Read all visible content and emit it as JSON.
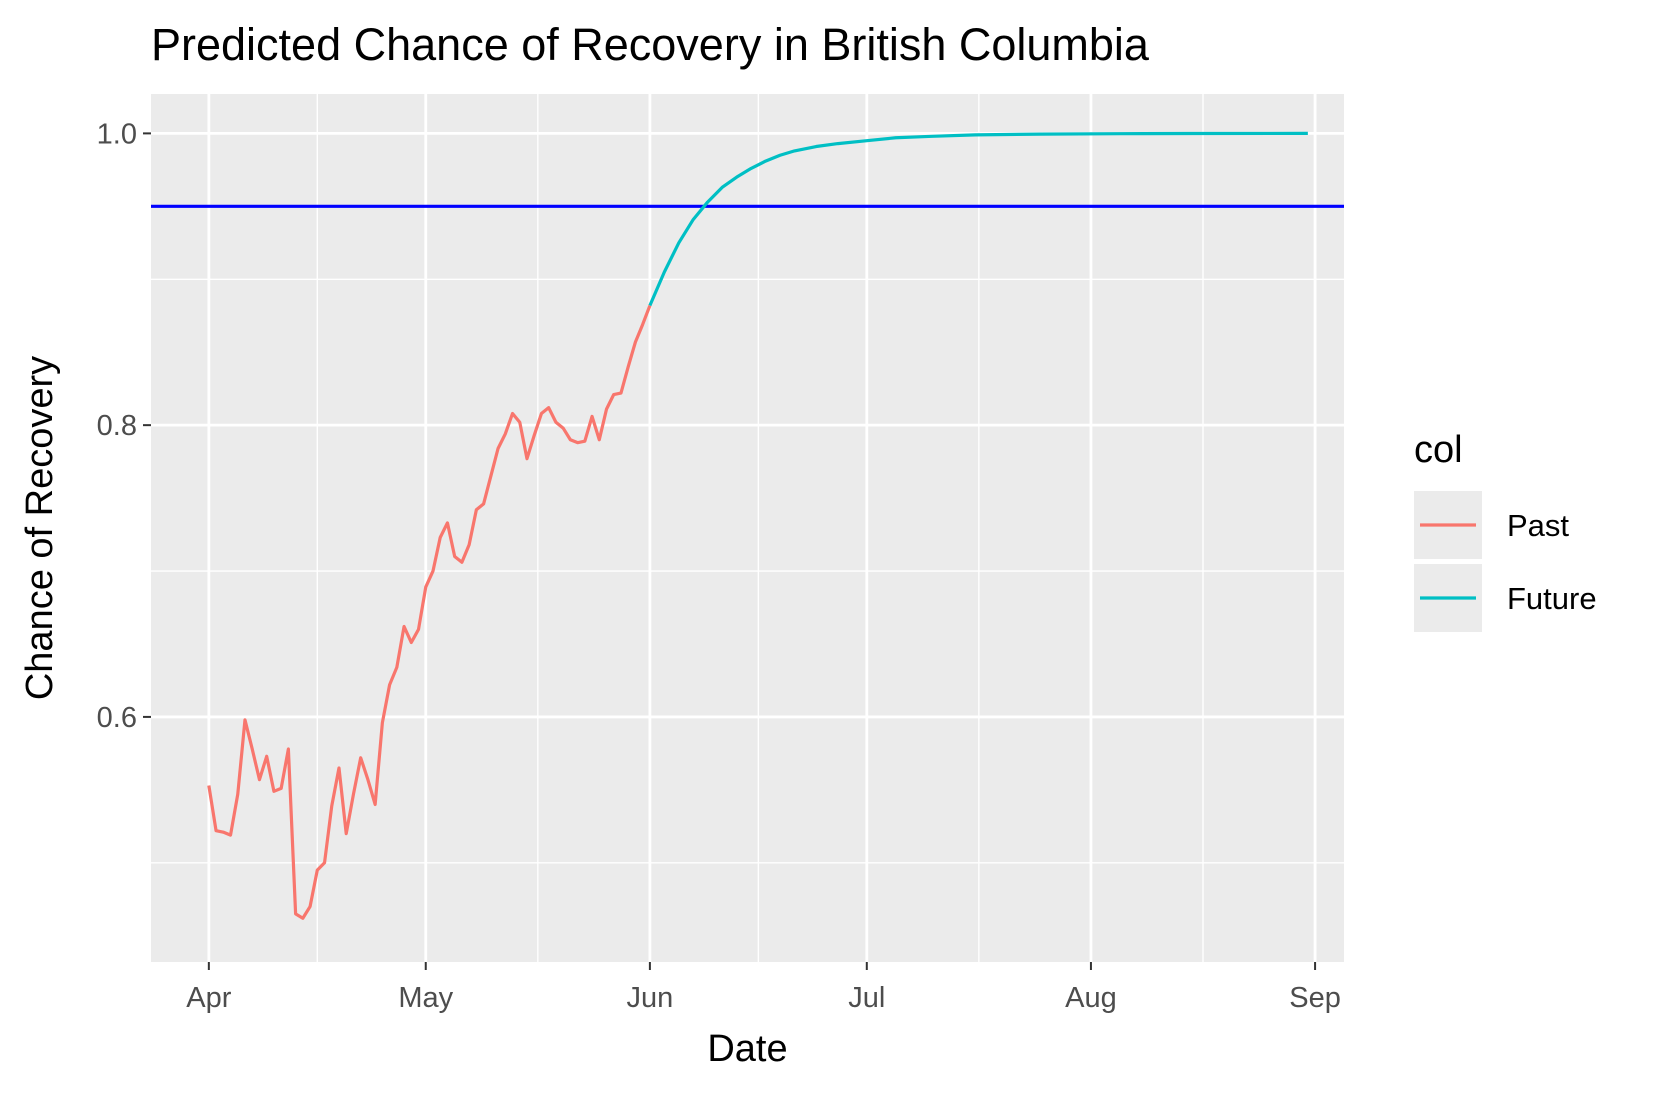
{
  "chart_data": {
    "type": "line",
    "title": "Predicted Chance of Recovery in British Columbia",
    "xlabel": "Date",
    "ylabel": "Chance of Recovery",
    "x_tick_labels": [
      "Apr",
      "May",
      "Jun",
      "Jul",
      "Aug",
      "Sep"
    ],
    "x_tick_dates": [
      "2020-04-01",
      "2020-05-01",
      "2020-06-01",
      "2020-07-01",
      "2020-08-01",
      "2020-09-01"
    ],
    "xlim": [
      "2020-03-24",
      "2020-09-05"
    ],
    "y_ticks": [
      0.6,
      0.8,
      1.0
    ],
    "y_tick_labels": [
      "0.6",
      "0.8",
      "1.0"
    ],
    "ylim": [
      0.432,
      1.027
    ],
    "grid": true,
    "hline": {
      "y": 0.95,
      "color": "#0000ff"
    },
    "legend": {
      "title": "col",
      "position": "right"
    },
    "series": [
      {
        "name": "Past",
        "color": "#f8766d",
        "points": [
          [
            "2020-04-01",
            0.553
          ],
          [
            "2020-04-02",
            0.522
          ],
          [
            "2020-04-03",
            0.521
          ],
          [
            "2020-04-04",
            0.519
          ],
          [
            "2020-04-05",
            0.547
          ],
          [
            "2020-04-06",
            0.598
          ],
          [
            "2020-04-07",
            0.578
          ],
          [
            "2020-04-08",
            0.557
          ],
          [
            "2020-04-09",
            0.573
          ],
          [
            "2020-04-10",
            0.549
          ],
          [
            "2020-04-11",
            0.551
          ],
          [
            "2020-04-12",
            0.578
          ],
          [
            "2020-04-13",
            0.465
          ],
          [
            "2020-04-14",
            0.462
          ],
          [
            "2020-04-15",
            0.47
          ],
          [
            "2020-04-16",
            0.495
          ],
          [
            "2020-04-17",
            0.5
          ],
          [
            "2020-04-18",
            0.539
          ],
          [
            "2020-04-19",
            0.565
          ],
          [
            "2020-04-20",
            0.52
          ],
          [
            "2020-04-21",
            0.547
          ],
          [
            "2020-04-22",
            0.572
          ],
          [
            "2020-04-23",
            0.557
          ],
          [
            "2020-04-24",
            0.54
          ],
          [
            "2020-04-25",
            0.596
          ],
          [
            "2020-04-26",
            0.622
          ],
          [
            "2020-04-27",
            0.634
          ],
          [
            "2020-04-28",
            0.662
          ],
          [
            "2020-04-29",
            0.651
          ],
          [
            "2020-04-30",
            0.66
          ],
          [
            "2020-05-01",
            0.689
          ],
          [
            "2020-05-02",
            0.7
          ],
          [
            "2020-05-03",
            0.723
          ],
          [
            "2020-05-04",
            0.733
          ],
          [
            "2020-05-05",
            0.71
          ],
          [
            "2020-05-06",
            0.706
          ],
          [
            "2020-05-07",
            0.718
          ],
          [
            "2020-05-08",
            0.742
          ],
          [
            "2020-05-09",
            0.746
          ],
          [
            "2020-05-10",
            0.765
          ],
          [
            "2020-05-11",
            0.784
          ],
          [
            "2020-05-12",
            0.794
          ],
          [
            "2020-05-13",
            0.808
          ],
          [
            "2020-05-14",
            0.802
          ],
          [
            "2020-05-15",
            0.777
          ],
          [
            "2020-05-16",
            0.793
          ],
          [
            "2020-05-17",
            0.808
          ],
          [
            "2020-05-18",
            0.812
          ],
          [
            "2020-05-19",
            0.802
          ],
          [
            "2020-05-20",
            0.798
          ],
          [
            "2020-05-21",
            0.79
          ],
          [
            "2020-05-22",
            0.788
          ],
          [
            "2020-05-23",
            0.789
          ],
          [
            "2020-05-24",
            0.806
          ],
          [
            "2020-05-25",
            0.79
          ],
          [
            "2020-05-26",
            0.811
          ],
          [
            "2020-05-27",
            0.821
          ],
          [
            "2020-05-28",
            0.822
          ],
          [
            "2020-05-29",
            0.84
          ],
          [
            "2020-05-30",
            0.857
          ],
          [
            "2020-05-31",
            0.869
          ],
          [
            "2020-06-01",
            0.882
          ]
        ]
      },
      {
        "name": "Future",
        "color": "#00bfc4",
        "points": [
          [
            "2020-06-01",
            0.882
          ],
          [
            "2020-06-03",
            0.905
          ],
          [
            "2020-06-05",
            0.925
          ],
          [
            "2020-06-07",
            0.941
          ],
          [
            "2020-06-09",
            0.953
          ],
          [
            "2020-06-11",
            0.963
          ],
          [
            "2020-06-13",
            0.97
          ],
          [
            "2020-06-15",
            0.976
          ],
          [
            "2020-06-17",
            0.981
          ],
          [
            "2020-06-19",
            0.985
          ],
          [
            "2020-06-21",
            0.988
          ],
          [
            "2020-06-24",
            0.991
          ],
          [
            "2020-06-27",
            0.993
          ],
          [
            "2020-07-01",
            0.995
          ],
          [
            "2020-07-05",
            0.997
          ],
          [
            "2020-07-10",
            0.998
          ],
          [
            "2020-07-16",
            0.999
          ],
          [
            "2020-07-25",
            0.9995
          ],
          [
            "2020-08-05",
            0.9998
          ],
          [
            "2020-08-15",
            0.9999
          ],
          [
            "2020-08-31",
            1.0
          ]
        ]
      }
    ]
  }
}
